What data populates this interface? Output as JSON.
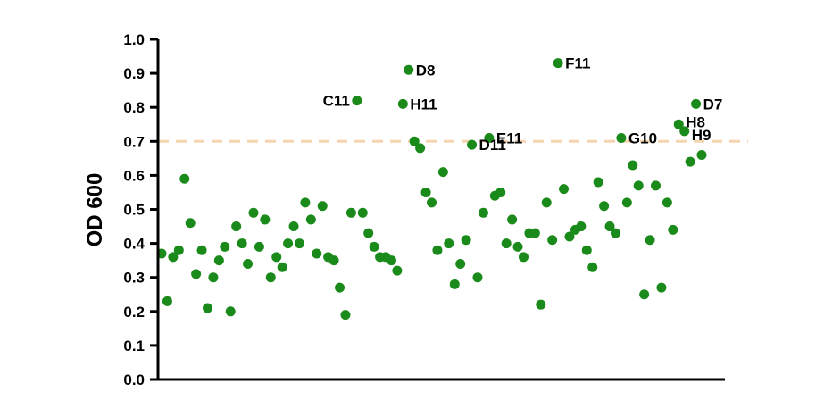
{
  "chart_data": {
    "type": "scatter",
    "title": "",
    "xlabel": "",
    "ylabel": "OD 600",
    "ylim": [
      0.0,
      1.0
    ],
    "yticks": [
      "0.0",
      "0.1",
      "0.2",
      "0.3",
      "0.4",
      "0.5",
      "0.6",
      "0.7",
      "0.8",
      "0.9",
      "1.0"
    ],
    "xticks_shown": false,
    "grid": false,
    "legend": "none",
    "point_color": "#1a8a1a",
    "threshold": {
      "value": 0.7,
      "color": "#f5d5b0",
      "style": "dashed"
    },
    "series": [
      {
        "values": [
          0.37,
          0.23,
          0.36,
          0.38,
          0.59,
          0.46,
          0.31,
          0.38,
          0.21,
          0.3,
          0.35,
          0.39,
          0.2,
          0.45,
          0.4,
          0.34,
          0.49,
          0.39,
          0.47,
          0.3,
          0.36,
          0.33,
          0.4,
          0.45,
          0.4,
          0.52,
          0.47,
          0.37,
          0.51,
          0.36,
          0.35,
          0.27,
          0.19,
          0.49,
          0.82,
          0.49,
          0.43,
          0.39,
          0.36,
          0.36,
          0.35,
          0.32,
          0.81,
          0.91,
          0.7,
          0.68,
          0.55,
          0.52,
          0.38,
          0.61,
          0.4,
          0.28,
          0.34,
          0.41,
          0.69,
          0.3,
          0.49,
          0.71,
          0.54,
          0.55,
          0.4,
          0.47,
          0.39,
          0.36,
          0.43,
          0.43,
          0.22,
          0.52,
          0.41,
          0.93,
          0.56,
          0.42,
          0.44,
          0.45,
          0.38,
          0.33,
          0.58,
          0.51,
          0.45,
          0.43,
          0.71,
          0.52,
          0.63,
          0.57,
          0.25,
          0.41,
          0.57,
          0.27,
          0.52,
          0.44,
          0.75,
          0.73,
          0.64,
          0.81,
          0.66
        ],
        "labels": [
          "",
          "",
          "",
          "",
          "",
          "",
          "",
          "",
          "",
          "",
          "",
          "",
          "",
          "",
          "",
          "",
          "",
          "",
          "",
          "",
          "",
          "",
          "",
          "",
          "",
          "",
          "",
          "",
          "",
          "",
          "",
          "",
          "",
          "",
          "C11",
          "",
          "",
          "",
          "",
          "",
          "",
          "",
          "H11",
          "D8",
          "",
          "",
          "",
          "",
          "",
          "",
          "",
          "",
          "",
          "",
          "D11",
          "",
          "",
          "E11",
          "",
          "",
          "",
          "",
          "",
          "",
          "",
          "",
          "",
          "",
          "",
          "F11",
          "",
          "",
          "",
          "",
          "",
          "",
          "",
          "",
          "",
          "",
          "G10",
          "",
          "",
          "",
          "",
          "",
          "",
          "",
          "",
          "",
          "H8",
          "H9",
          "",
          "D7",
          ""
        ]
      }
    ],
    "annotations": [
      "C11",
      "D8",
      "D11",
      "H11",
      "E11",
      "F11",
      "G10",
      "D7",
      "H8",
      "H9"
    ]
  }
}
